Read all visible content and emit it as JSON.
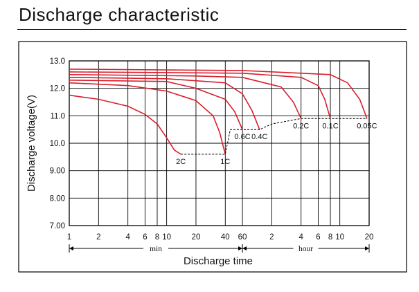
{
  "page": {
    "heading": "Discharge characteristic"
  },
  "chart_data": {
    "type": "line",
    "title": "Discharge characteristic",
    "xlabel": "Discharge time",
    "ylabel": "Discharge voltage(V)",
    "x_scale": "log",
    "x_unit_segments": [
      {
        "label": "min",
        "range": [
          1,
          60
        ]
      },
      {
        "label": "hour",
        "range": [
          60,
          1200
        ]
      }
    ],
    "x_ticks": [
      {
        "label": "1",
        "minutes": 1
      },
      {
        "label": "2",
        "minutes": 2
      },
      {
        "label": "4",
        "minutes": 4
      },
      {
        "label": "6",
        "minutes": 6
      },
      {
        "label": "8",
        "minutes": 8
      },
      {
        "label": "10",
        "minutes": 10
      },
      {
        "label": "20",
        "minutes": 20
      },
      {
        "label": "40",
        "minutes": 40
      },
      {
        "label": "60",
        "minutes": 60
      },
      {
        "label": "2",
        "minutes": 120
      },
      {
        "label": "4",
        "minutes": 240
      },
      {
        "label": "6",
        "minutes": 360
      },
      {
        "label": "8",
        "minutes": 480
      },
      {
        "label": "10",
        "minutes": 600
      },
      {
        "label": "20",
        "minutes": 1200
      }
    ],
    "y_ticks": [
      "7.00",
      "8.00",
      "9.00",
      "10.0",
      "11.0",
      "12.0",
      "13.0"
    ],
    "ylim": [
      7.0,
      13.0
    ],
    "xlim": [
      1,
      1200
    ],
    "grid": true,
    "series": [
      {
        "name": "2C",
        "x": [
          1,
          2,
          4,
          6,
          8,
          10,
          12,
          14
        ],
        "y": [
          11.75,
          11.6,
          11.35,
          11.05,
          10.7,
          10.2,
          9.75,
          9.6
        ]
      },
      {
        "name": "1C",
        "x": [
          1,
          4,
          10,
          20,
          30,
          35,
          40
        ],
        "y": [
          12.2,
          12.1,
          11.9,
          11.55,
          11.0,
          10.4,
          9.6
        ]
      },
      {
        "name": "0.6C",
        "x": [
          1,
          10,
          20,
          40,
          50,
          60
        ],
        "y": [
          12.3,
          12.25,
          12.0,
          11.6,
          11.15,
          10.5
        ]
      },
      {
        "name": "0.4C",
        "x": [
          1,
          10,
          40,
          60,
          75,
          90
        ],
        "y": [
          12.4,
          12.35,
          12.2,
          11.8,
          11.2,
          10.5
        ]
      },
      {
        "name": "0.2C",
        "x": [
          1,
          20,
          60,
          150,
          200,
          240
        ],
        "y": [
          12.5,
          12.45,
          12.4,
          12.05,
          11.5,
          10.9
        ]
      },
      {
        "name": "0.1C",
        "x": [
          1,
          60,
          240,
          360,
          420,
          480
        ],
        "y": [
          12.6,
          12.55,
          12.4,
          12.1,
          11.6,
          10.9
        ]
      },
      {
        "name": "0.05C",
        "x": [
          1,
          60,
          480,
          720,
          960,
          1140
        ],
        "y": [
          12.7,
          12.65,
          12.5,
          12.2,
          11.6,
          10.9
        ]
      }
    ],
    "cutoff_line": {
      "x": [
        14,
        30,
        40,
        45,
        60,
        90,
        120,
        240,
        480,
        1140
      ],
      "y": [
        9.6,
        9.6,
        9.6,
        10.5,
        10.5,
        10.5,
        10.7,
        10.9,
        10.9,
        10.9
      ]
    }
  }
}
